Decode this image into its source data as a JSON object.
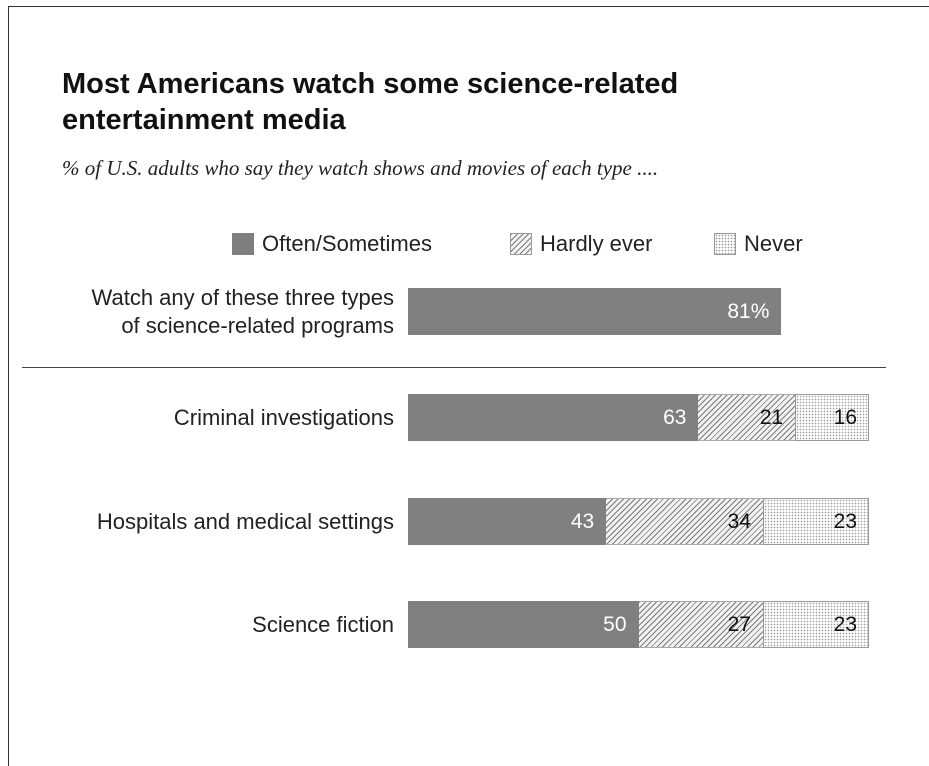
{
  "chart_data": {
    "type": "bar",
    "orientation": "horizontal",
    "stacked": true,
    "title": "Most Americans watch some science-related entertainment media",
    "subtitle": "% of U.S. adults who say they watch shows and movies of each type ....",
    "legend": {
      "placement": "top",
      "entries": [
        "Often/Sometimes",
        "Hardly ever",
        "Never"
      ]
    },
    "categories": [
      "Watch any of these three types of science-related programs",
      "Criminal investigations",
      "Hospitals and medical settings",
      "Science fiction"
    ],
    "category_lines": [
      [
        "Watch any of these three types",
        "of science-related programs"
      ],
      [
        "Criminal investigations"
      ],
      [
        "Hospitals and medical settings"
      ],
      [
        "Science fiction"
      ]
    ],
    "series": [
      {
        "name": "Often/Sometimes",
        "values": [
          81,
          63,
          43,
          50
        ]
      },
      {
        "name": "Hardly ever",
        "values": [
          null,
          21,
          34,
          27
        ]
      },
      {
        "name": "Never",
        "values": [
          null,
          16,
          23,
          23
        ]
      }
    ],
    "data_labels": [
      [
        "81%",
        "",
        ""
      ],
      [
        "63",
        "21",
        "16"
      ],
      [
        "43",
        "34",
        "23"
      ],
      [
        "50",
        "27",
        "23"
      ]
    ],
    "xlim": [
      0,
      100
    ],
    "grid": false,
    "colors": {
      "often": "#808080",
      "hardly": "#f2f2f2",
      "never": "#ffffff"
    }
  }
}
